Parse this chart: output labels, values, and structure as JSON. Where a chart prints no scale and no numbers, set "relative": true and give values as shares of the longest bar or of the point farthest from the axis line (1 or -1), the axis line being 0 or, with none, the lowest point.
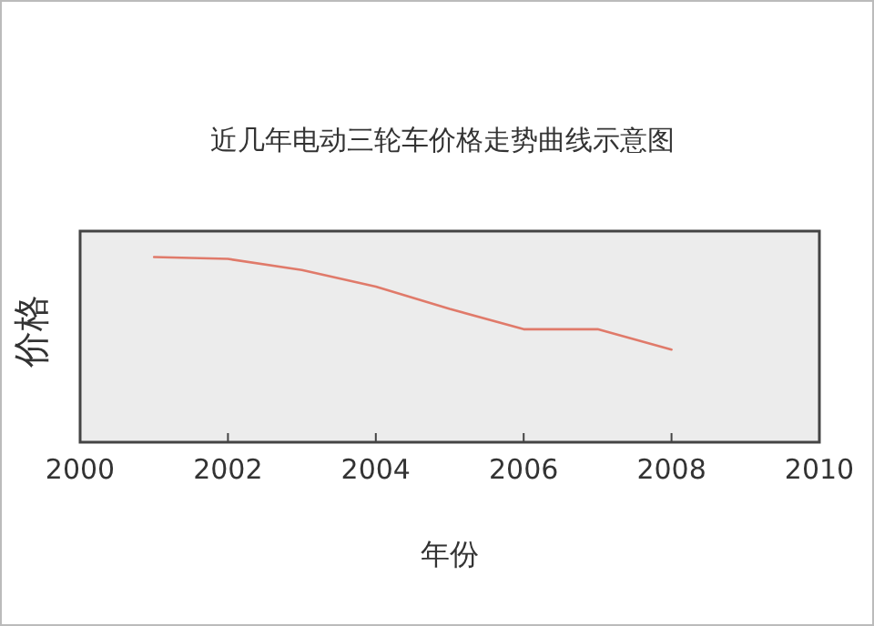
{
  "chart_data": {
    "type": "line",
    "title": "近几年电动三轮车价格走势曲线示意图",
    "xlabel": "年份",
    "ylabel": "价格",
    "relative": true,
    "x": [
      2001,
      2002,
      2003,
      2004,
      2005,
      2006,
      2007,
      2008
    ],
    "values": [
      1,
      0.99,
      0.93,
      0.84,
      0.72,
      0.61,
      0.61,
      0.5
    ],
    "color": "#e07a6a",
    "xlim": [
      2000,
      2010
    ],
    "xticks": [
      2000,
      2002,
      2004,
      2006,
      2008,
      2010
    ]
  }
}
